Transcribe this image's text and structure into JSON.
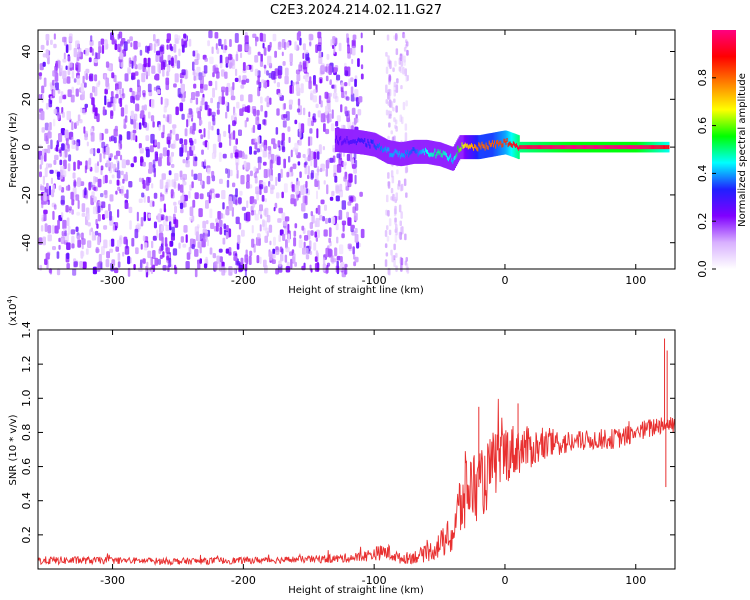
{
  "title": "C2E3.2024.214.02.11.G27",
  "chart_data": [
    {
      "type": "heatmap",
      "xlabel": "Height of straight line (km)",
      "ylabel": "Frequency (Hz)",
      "xlim": [
        -357,
        130
      ],
      "ylim": [
        -51,
        49
      ],
      "xticks": [
        -300,
        -200,
        -100,
        0,
        100
      ],
      "yticks": [
        -40,
        -20,
        0,
        20,
        40
      ],
      "colorbar": {
        "label": "Normalized spectral amplitude",
        "range": [
          0.0,
          1.0
        ],
        "ticks": [
          "0.0",
          "0.2",
          "0.4",
          "0.6",
          "0.8"
        ],
        "colors": [
          "#ffffff",
          "#d8b0ff",
          "#8000ff",
          "#2020ff",
          "#00ffff",
          "#00ff00",
          "#ffff00",
          "#ff8000",
          "#ff0000",
          "#ff0080"
        ]
      },
      "noise_region_x": [
        -357,
        -110
      ],
      "noise_column_x": [
        -92,
        -75
      ],
      "signal_trace": {
        "x": [
          -130,
          -110,
          -100,
          -90,
          -80,
          -70,
          -60,
          -50,
          -40,
          -35,
          -30,
          -20,
          -10,
          0,
          10,
          50,
          100,
          125
        ],
        "y": [
          3,
          2,
          1,
          -2,
          -3,
          -2,
          -2,
          -3,
          -5,
          0,
          0,
          0,
          1,
          2,
          0,
          0,
          0,
          0
        ],
        "amplitude": [
          0.25,
          0.3,
          0.35,
          0.4,
          0.4,
          0.35,
          0.45,
          0.5,
          0.4,
          0.6,
          0.7,
          0.8,
          0.8,
          0.85,
          0.95,
          1.0,
          1.0,
          0.9
        ]
      }
    },
    {
      "type": "line",
      "xlabel": "Height of straight line (km)",
      "ylabel": "SNR (10 * v/v)",
      "scale_label": "(x10",
      "scale_exp": "4",
      "scale_close": ")",
      "xlim": [
        -357,
        130
      ],
      "ylim": [
        0,
        1.4
      ],
      "xticks": [
        -300,
        -200,
        -100,
        0,
        100
      ],
      "yticks": [
        0.2,
        0.4,
        0.6,
        0.8,
        1.0,
        1.2,
        1.4
      ],
      "series_color": "#e83030",
      "series": [
        {
          "x": [
            -357,
            -300,
            -250,
            -200,
            -160,
            -130,
            -110,
            -100,
            -90,
            -80,
            -70,
            -60,
            -50,
            -40,
            -35,
            -30,
            -25,
            -20,
            -15,
            -10,
            -5,
            0,
            10,
            20,
            30,
            40,
            50,
            60,
            70,
            80,
            90,
            100,
            110,
            120,
            123,
            125,
            130
          ],
          "y": [
            0.05,
            0.05,
            0.045,
            0.05,
            0.055,
            0.06,
            0.07,
            0.09,
            0.1,
            0.06,
            0.07,
            0.09,
            0.14,
            0.2,
            0.35,
            0.45,
            0.5,
            0.48,
            0.52,
            0.6,
            0.64,
            0.68,
            0.7,
            0.71,
            0.72,
            0.74,
            0.74,
            0.75,
            0.76,
            0.76,
            0.77,
            0.8,
            0.82,
            0.85,
            0.85,
            0.85,
            0.85
          ],
          "noise": [
            0.025,
            0.02,
            0.02,
            0.02,
            0.02,
            0.025,
            0.03,
            0.04,
            0.05,
            0.03,
            0.04,
            0.05,
            0.08,
            0.12,
            0.2,
            0.25,
            0.22,
            0.2,
            0.2,
            0.2,
            0.2,
            0.18,
            0.15,
            0.12,
            0.1,
            0.08,
            0.07,
            0.06,
            0.06,
            0.06,
            0.06,
            0.06,
            0.06,
            0.06,
            0.06,
            0.06,
            0.06
          ]
        }
      ],
      "spikes": [
        {
          "x": -20,
          "y": 0.95
        },
        {
          "x": 10,
          "y": 0.97
        },
        {
          "x": 122,
          "y": 1.35
        },
        {
          "x": 124,
          "y": 1.28
        },
        {
          "x": 123,
          "y": 0.48
        }
      ]
    }
  ]
}
